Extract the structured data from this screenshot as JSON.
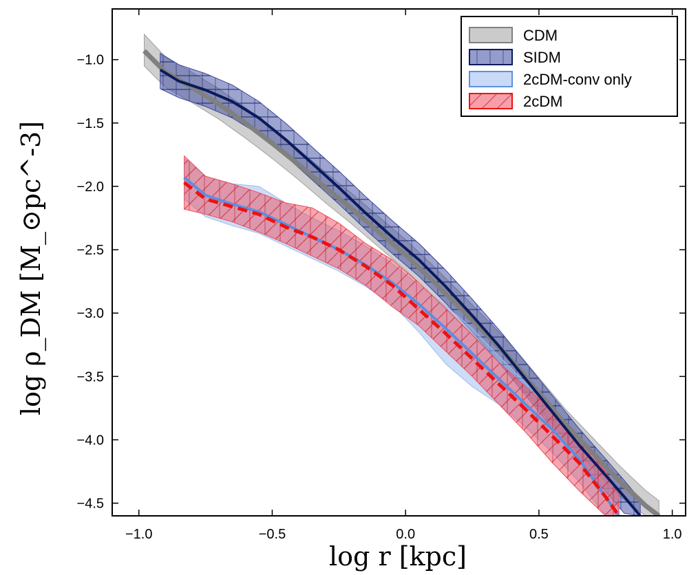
{
  "chart_data": {
    "type": "line",
    "xlabel": "log r [kpc]",
    "ylabel": "log ρ_DM [M_⊙pc^-3]",
    "xlim": [
      -1.1,
      1.05
    ],
    "ylim": [
      -4.6,
      -0.6
    ],
    "xticks": [
      -1.0,
      -0.5,
      0.0,
      0.5,
      1.0
    ],
    "xtick_labels": [
      "−1.0",
      "−0.5",
      "0.0",
      "0.5",
      "1.0"
    ],
    "yticks": [
      -1.0,
      -1.5,
      -2.0,
      -2.5,
      -3.0,
      -3.5,
      -4.0,
      -4.5
    ],
    "ytick_labels": [
      "−1.0",
      "−1.5",
      "−2.0",
      "−2.5",
      "−3.0",
      "−3.5",
      "−4.0",
      "−4.5"
    ],
    "grid": false,
    "legend_position": "top-right",
    "series": [
      {
        "name": "CDM",
        "line_color": "#808080",
        "band_color": "#a0a0a0",
        "line_style": "solid",
        "hatch": "none",
        "x": [
          -0.98,
          -0.9,
          -0.8,
          -0.7,
          -0.6,
          -0.5,
          -0.4,
          -0.3,
          -0.2,
          -0.1,
          0.0,
          0.1,
          0.2,
          0.3,
          0.4,
          0.5,
          0.6,
          0.7,
          0.8,
          0.9,
          0.95
        ],
        "y": [
          -0.93,
          -1.1,
          -1.22,
          -1.35,
          -1.5,
          -1.66,
          -1.83,
          -2.01,
          -2.18,
          -2.36,
          -2.54,
          -2.74,
          -2.95,
          -3.16,
          -3.38,
          -3.63,
          -3.88,
          -4.1,
          -4.32,
          -4.52,
          -4.6
        ],
        "lower": [
          -1.05,
          -1.22,
          -1.34,
          -1.47,
          -1.62,
          -1.78,
          -1.95,
          -2.13,
          -2.3,
          -2.48,
          -2.66,
          -2.86,
          -3.07,
          -3.28,
          -3.5,
          -3.75,
          -4.0,
          -4.22,
          -4.44,
          -4.6,
          -4.6
        ],
        "upper": [
          -0.8,
          -0.98,
          -1.1,
          -1.23,
          -1.38,
          -1.54,
          -1.71,
          -1.89,
          -2.06,
          -2.24,
          -2.42,
          -2.62,
          -2.83,
          -3.04,
          -3.26,
          -3.51,
          -3.76,
          -3.98,
          -4.2,
          -4.4,
          -4.48
        ]
      },
      {
        "name": "SIDM",
        "line_color": "#0a1a5c",
        "band_color": "#3b4aa0",
        "line_style": "solid",
        "hatch": "horizontal",
        "x": [
          -0.92,
          -0.85,
          -0.75,
          -0.65,
          -0.55,
          -0.45,
          -0.35,
          -0.25,
          -0.15,
          -0.05,
          0.05,
          0.15,
          0.25,
          0.35,
          0.45,
          0.55,
          0.65,
          0.75,
          0.82,
          0.88
        ],
        "y": [
          -1.08,
          -1.17,
          -1.24,
          -1.33,
          -1.46,
          -1.63,
          -1.82,
          -2.01,
          -2.21,
          -2.4,
          -2.58,
          -2.79,
          -3.02,
          -3.26,
          -3.52,
          -3.78,
          -4.04,
          -4.28,
          -4.45,
          -4.6
        ],
        "lower": [
          -1.23,
          -1.3,
          -1.37,
          -1.46,
          -1.59,
          -1.76,
          -1.95,
          -2.14,
          -2.34,
          -2.53,
          -2.71,
          -2.92,
          -3.15,
          -3.39,
          -3.65,
          -3.91,
          -4.17,
          -4.41,
          -4.58,
          -4.6
        ],
        "upper": [
          -0.95,
          -1.04,
          -1.11,
          -1.2,
          -1.33,
          -1.5,
          -1.69,
          -1.88,
          -2.08,
          -2.27,
          -2.45,
          -2.66,
          -2.89,
          -3.13,
          -3.39,
          -3.65,
          -3.91,
          -4.15,
          -4.32,
          -4.47
        ]
      },
      {
        "name": "2cDM-conv only",
        "line_color": "#5d8fe0",
        "band_color": "#9bbcf0",
        "line_style": "solid",
        "hatch": "none",
        "x": [
          -0.83,
          -0.75,
          -0.65,
          -0.55,
          -0.45,
          -0.35,
          -0.25,
          -0.15,
          -0.05,
          0.05,
          0.15,
          0.25,
          0.35,
          0.45,
          0.55,
          0.65,
          0.75,
          0.8
        ],
        "y": [
          -1.93,
          -2.07,
          -2.14,
          -2.2,
          -2.3,
          -2.4,
          -2.5,
          -2.62,
          -2.76,
          -2.93,
          -3.12,
          -3.32,
          -3.52,
          -3.72,
          -3.92,
          -4.15,
          -4.45,
          -4.6
        ],
        "lower": [
          -2.1,
          -2.24,
          -2.31,
          -2.37,
          -2.47,
          -2.57,
          -2.67,
          -2.79,
          -2.93,
          -3.15,
          -3.4,
          -3.58,
          -3.72,
          -3.9,
          -4.1,
          -4.33,
          -4.6,
          -4.6
        ],
        "upper": [
          -1.78,
          -1.92,
          -1.98,
          -2.0,
          -2.13,
          -2.25,
          -2.35,
          -2.47,
          -2.61,
          -2.78,
          -2.94,
          -3.12,
          -3.34,
          -3.55,
          -3.75,
          -3.98,
          -4.28,
          -4.45
        ]
      },
      {
        "name": "2cDM",
        "line_color": "#ee1111",
        "band_color": "#ee5060",
        "line_style": "dashed",
        "hatch": "diagonal",
        "x": [
          -0.83,
          -0.75,
          -0.65,
          -0.55,
          -0.45,
          -0.35,
          -0.25,
          -0.15,
          -0.05,
          0.05,
          0.15,
          0.25,
          0.35,
          0.45,
          0.55,
          0.65,
          0.75,
          0.8
        ],
        "y": [
          -1.97,
          -2.1,
          -2.16,
          -2.22,
          -2.32,
          -2.4,
          -2.5,
          -2.63,
          -2.78,
          -2.97,
          -3.16,
          -3.36,
          -3.56,
          -3.76,
          -3.97,
          -4.18,
          -4.45,
          -4.6
        ],
        "lower": [
          -2.18,
          -2.22,
          -2.28,
          -2.36,
          -2.45,
          -2.55,
          -2.65,
          -2.78,
          -2.95,
          -3.1,
          -3.3,
          -3.5,
          -3.72,
          -3.94,
          -4.18,
          -4.4,
          -4.6,
          -4.6
        ],
        "upper": [
          -1.76,
          -1.92,
          -1.98,
          -2.05,
          -2.13,
          -2.17,
          -2.29,
          -2.45,
          -2.58,
          -2.76,
          -2.96,
          -3.17,
          -3.39,
          -3.58,
          -3.77,
          -3.98,
          -4.25,
          -4.42
        ]
      }
    ]
  }
}
